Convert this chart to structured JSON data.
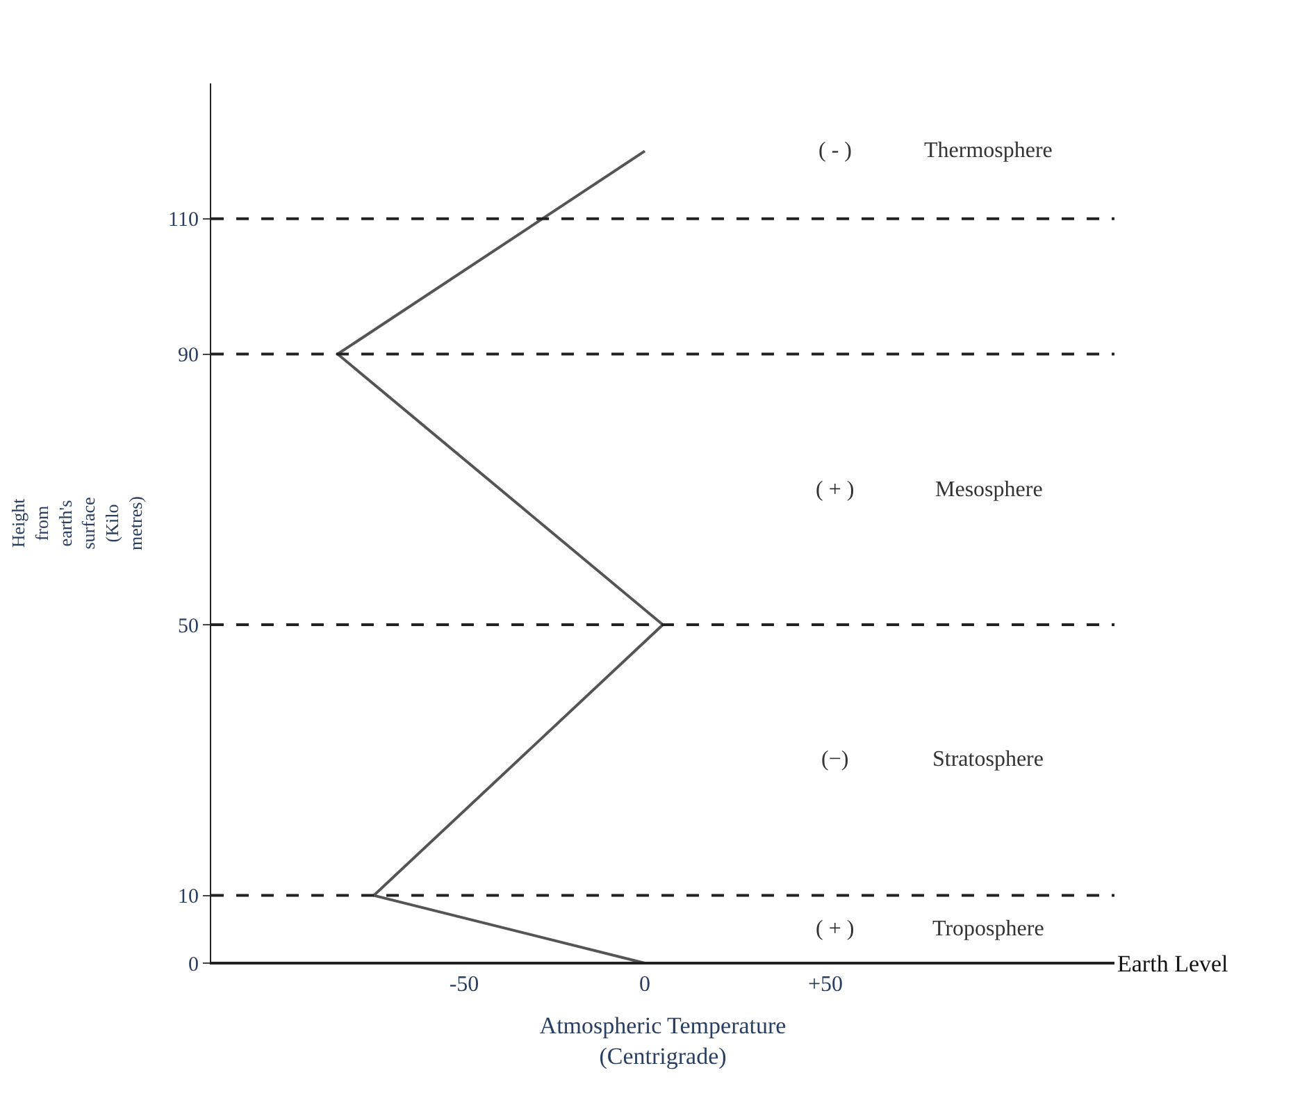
{
  "chart_data": {
    "type": "line",
    "xlabel": "Atmospheric Temperature\n(Centrigrade)",
    "ylabel": "Height from earth's surface (Kilo metres)",
    "x": [
      0,
      -75,
      5,
      -85,
      0
    ],
    "series": [
      {
        "color": "#555555",
        "values": [
          0,
          10,
          50,
          90,
          120
        ]
      }
    ],
    "xlim": [
      -120,
      130
    ],
    "xticks": [
      -50,
      0,
      {
        "value": 50,
        "label": "+50"
      }
    ],
    "ylim": [
      0,
      130
    ],
    "yticks": [
      0,
      10,
      50,
      90,
      110
    ],
    "marker": "none",
    "line_style": "solid",
    "ref_lines": [
      {
        "axis": "y",
        "value": 0,
        "label": "Earth Level",
        "color": "#222222",
        "line_style": "solid"
      },
      {
        "axis": "y",
        "value": 10,
        "color": "#222222",
        "line_style": "dashed"
      },
      {
        "axis": "y",
        "value": 50,
        "color": "#222222",
        "line_style": "dashed"
      },
      {
        "axis": "y",
        "value": 90,
        "color": "#222222",
        "line_style": "dashed"
      },
      {
        "axis": "y",
        "value": 110,
        "color": "#222222",
        "line_style": "dashed"
      }
    ],
    "annotations": [
      "Troposphere",
      "Stratosphere",
      "Mesosphere",
      "Thermosphere",
      "( + )",
      "(−)",
      "( + )",
      "( - )"
    ]
  }
}
